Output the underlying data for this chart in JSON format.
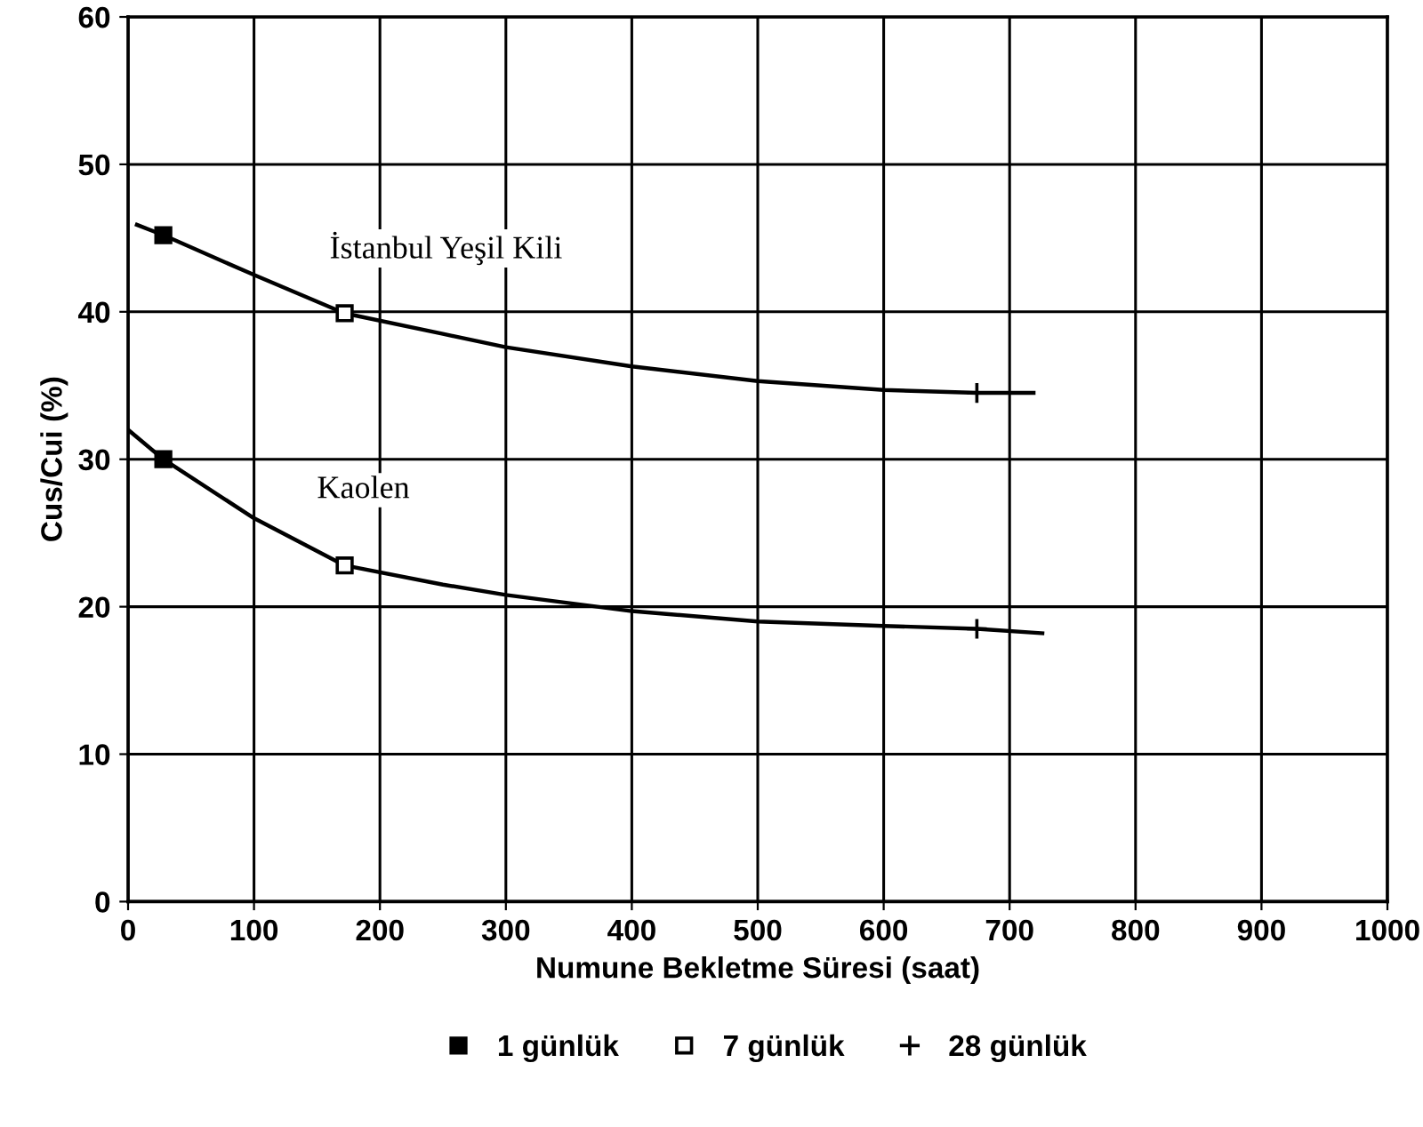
{
  "chart_data": {
    "type": "line",
    "xlabel": "Numune Bekletme Süresi (saat)",
    "ylabel": "Cus/Cui (%)",
    "xlim": [
      0,
      1000
    ],
    "xticks": [
      0,
      100,
      200,
      300,
      400,
      500,
      600,
      700,
      800,
      900,
      1000
    ],
    "ylim": [
      0,
      60
    ],
    "yticks": [
      0,
      10,
      20,
      30,
      40,
      50,
      60
    ],
    "grid": true,
    "legend": "bottom",
    "series": [
      {
        "color": "#000000",
        "marker": "none",
        "x": [
          7,
          28,
          100,
          172,
          250,
          300,
          400,
          500,
          600,
          674,
          719
        ],
        "values": [
          45.9,
          45.2,
          42.5,
          39.9,
          38.5,
          37.6,
          36.3,
          35.3,
          34.7,
          34.5,
          34.5
        ]
      },
      {
        "color": "#000000",
        "marker": "none",
        "x": [
          0,
          28,
          100,
          172,
          250,
          300,
          400,
          500,
          600,
          674,
          726
        ],
        "values": [
          32,
          30,
          26,
          22.8,
          21.5,
          20.8,
          19.7,
          19,
          18.7,
          18.5,
          18.2
        ]
      },
      {
        "type": "scatter",
        "name": "1 günlük",
        "color": "#000000",
        "marker": "square",
        "x": [
          28,
          28
        ],
        "values": [
          45.2,
          30
        ]
      },
      {
        "type": "scatter",
        "name": "7 günlük",
        "color": "#ffffff",
        "marker": "square",
        "x": [
          172,
          172
        ],
        "values": [
          39.9,
          22.8
        ]
      },
      {
        "type": "scatter",
        "name": "28 günlük",
        "color": "#000000",
        "marker": "cross",
        "x": [
          674,
          674
        ],
        "values": [
          34.5,
          18.5
        ]
      }
    ],
    "annotations": [
      "İstanbul Yeşil Kili",
      "Kaolen"
    ]
  }
}
